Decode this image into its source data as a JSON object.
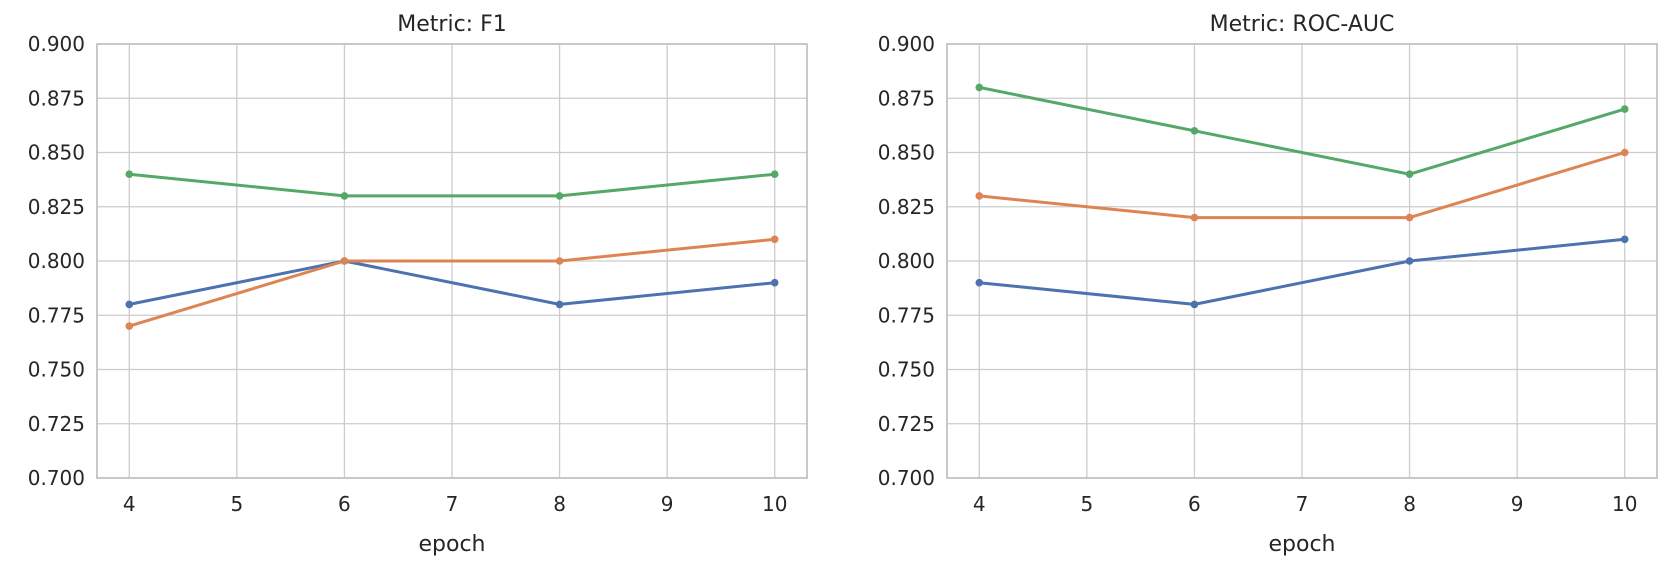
{
  "figure": {
    "background": "#ffffff",
    "panel_titles": [
      "Metric: F1",
      "Metric: ROC-AUC"
    ]
  },
  "style": {
    "grid_color": "#cccccc",
    "spine_color": "#c3c3c3",
    "text_color": "#262626"
  },
  "chart_data": [
    {
      "type": "line",
      "title": "Metric: F1",
      "xlabel": "epoch",
      "ylabel": "",
      "x": [
        4,
        6,
        8,
        10
      ],
      "xticks": [
        4,
        5,
        6,
        7,
        8,
        9,
        10
      ],
      "xtick_labels": [
        "4",
        "5",
        "6",
        "7",
        "8",
        "9",
        "10"
      ],
      "yticks": [
        0.7,
        0.725,
        0.75,
        0.775,
        0.8,
        0.825,
        0.85,
        0.875,
        0.9
      ],
      "ytick_labels": [
        "0.700",
        "0.725",
        "0.750",
        "0.775",
        "0.800",
        "0.825",
        "0.850",
        "0.875",
        "0.900"
      ],
      "xlim": [
        3.7,
        10.3
      ],
      "ylim": [
        0.7,
        0.9
      ],
      "grid": true,
      "legend": "none",
      "marker": "circle",
      "series": [
        {
          "name": "blue",
          "color": "#4C72B0",
          "values": [
            0.78,
            0.8,
            0.78,
            0.79
          ]
        },
        {
          "name": "orange",
          "color": "#DD8452",
          "values": [
            0.77,
            0.8,
            0.8,
            0.81
          ]
        },
        {
          "name": "green",
          "color": "#55A868",
          "values": [
            0.84,
            0.83,
            0.83,
            0.84
          ]
        }
      ]
    },
    {
      "type": "line",
      "title": "Metric: ROC-AUC",
      "xlabel": "epoch",
      "ylabel": "",
      "x": [
        4,
        6,
        8,
        10
      ],
      "xticks": [
        4,
        5,
        6,
        7,
        8,
        9,
        10
      ],
      "xtick_labels": [
        "4",
        "5",
        "6",
        "7",
        "8",
        "9",
        "10"
      ],
      "yticks": [
        0.7,
        0.725,
        0.75,
        0.775,
        0.8,
        0.825,
        0.85,
        0.875,
        0.9
      ],
      "ytick_labels": [
        "0.700",
        "0.725",
        "0.750",
        "0.775",
        "0.800",
        "0.825",
        "0.850",
        "0.875",
        "0.900"
      ],
      "xlim": [
        3.7,
        10.3
      ],
      "ylim": [
        0.7,
        0.9
      ],
      "grid": true,
      "legend": "none",
      "marker": "circle",
      "series": [
        {
          "name": "blue",
          "color": "#4C72B0",
          "values": [
            0.79,
            0.78,
            0.8,
            0.81
          ]
        },
        {
          "name": "orange",
          "color": "#DD8452",
          "values": [
            0.83,
            0.82,
            0.82,
            0.85
          ]
        },
        {
          "name": "green",
          "color": "#55A868",
          "values": [
            0.88,
            0.86,
            0.84,
            0.87
          ]
        }
      ]
    }
  ]
}
